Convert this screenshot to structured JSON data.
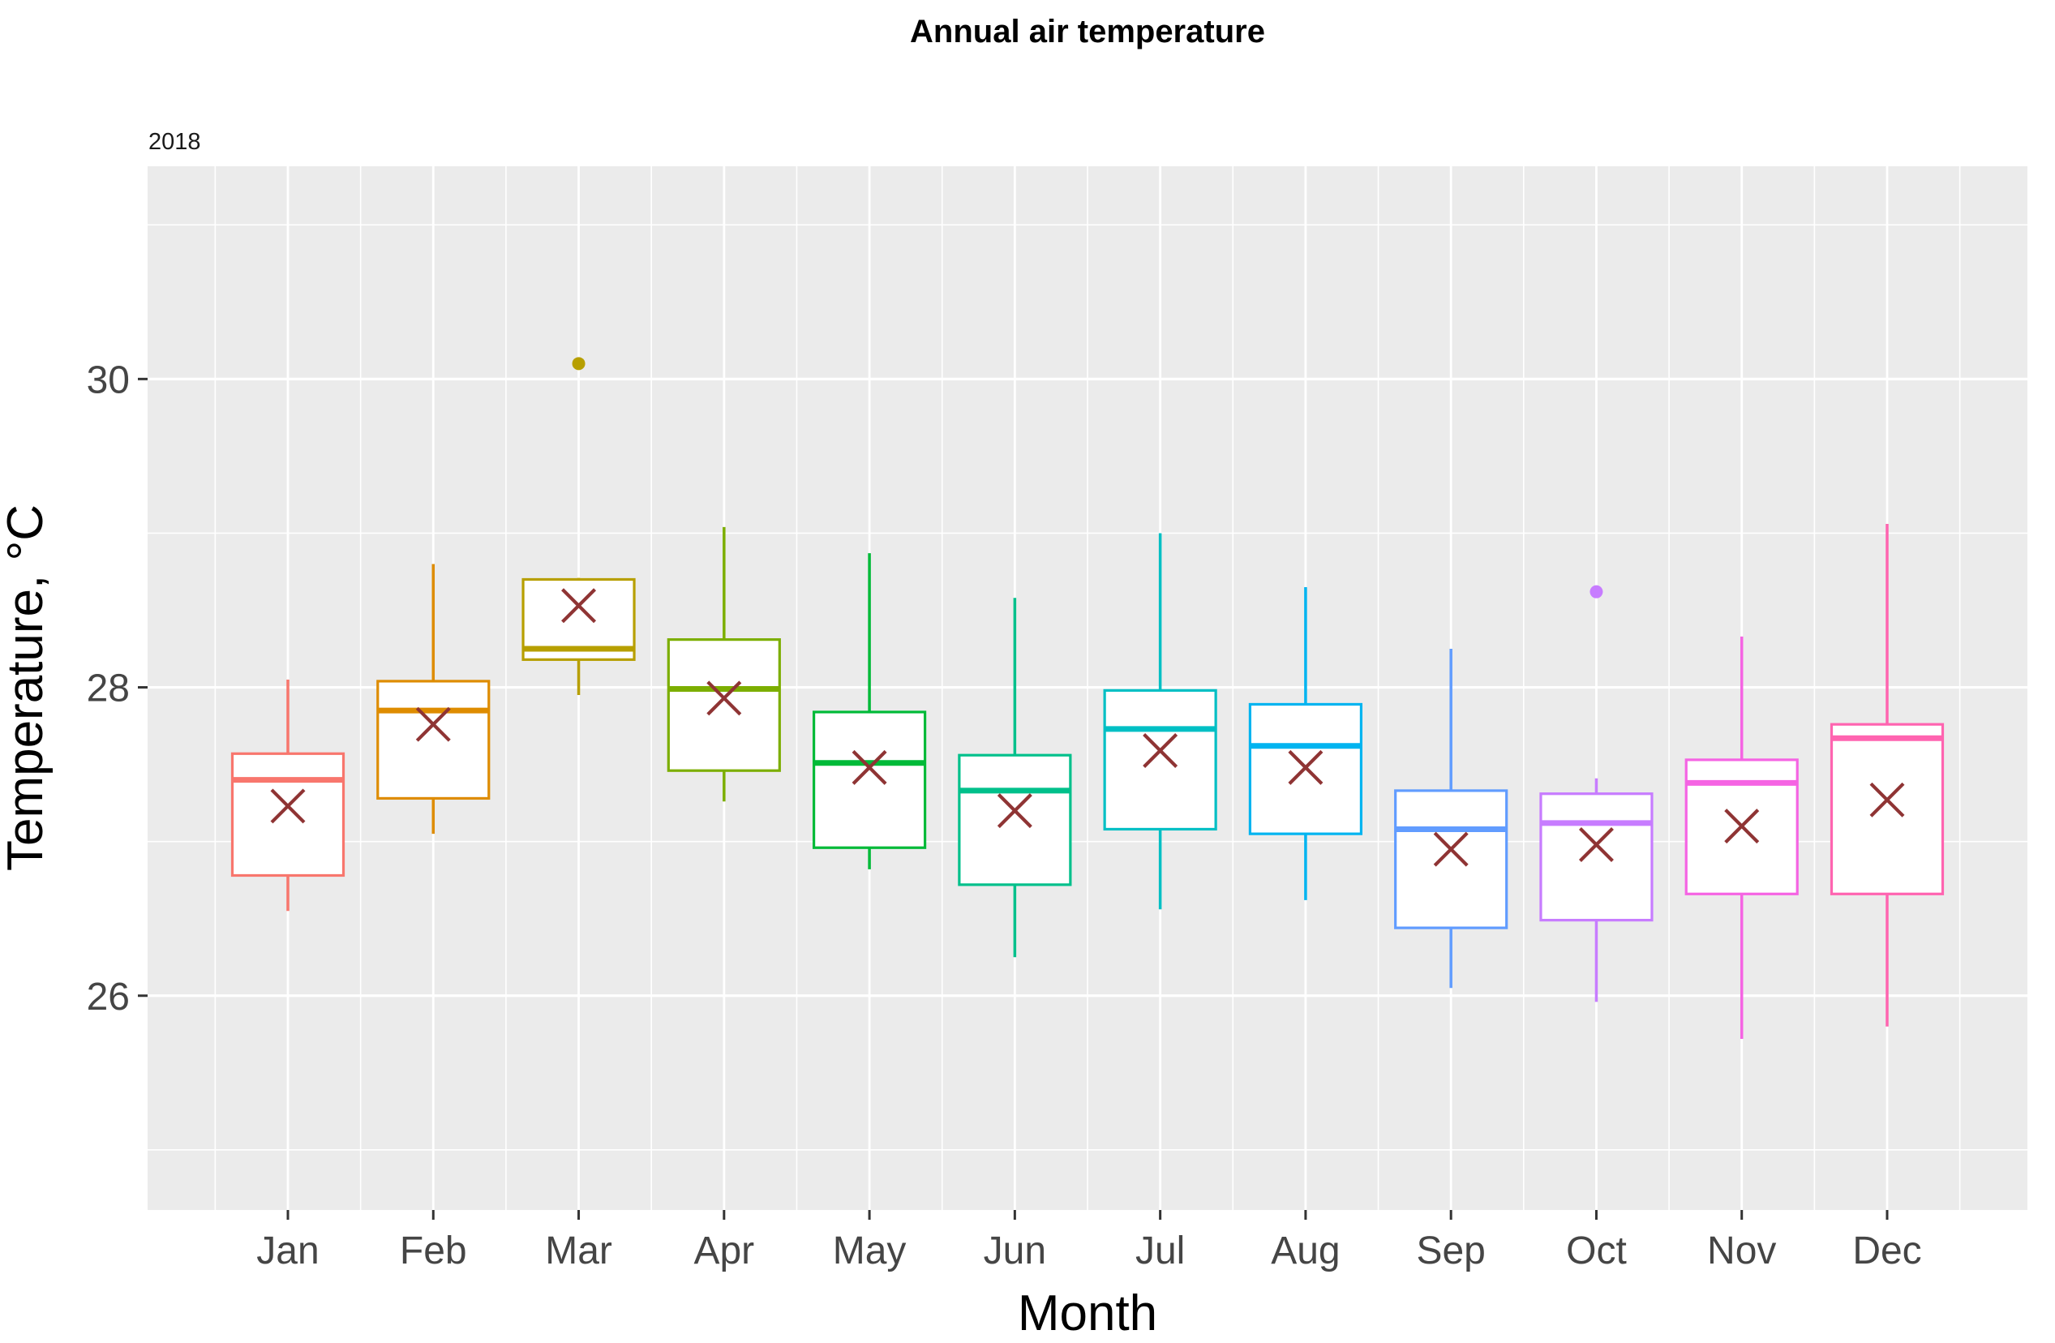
{
  "chart_data": {
    "type": "boxplot",
    "title": "Annual air temperature",
    "facet_label": "2018",
    "xlabel": "Month",
    "ylabel": "Temperature, °C",
    "categories": [
      "Jan",
      "Feb",
      "Mar",
      "Apr",
      "May",
      "Jun",
      "Jul",
      "Aug",
      "Sep",
      "Oct",
      "Nov",
      "Dec"
    ],
    "y_axis": {
      "major_ticks": [
        26,
        28,
        30
      ],
      "minor_ticks": [
        25,
        27,
        29,
        31
      ],
      "ylim": [
        24.61,
        31.38
      ],
      "grid": "on",
      "legend": "none"
    },
    "series": [
      {
        "month": "Jan",
        "color": "#F8766D",
        "min": 26.55,
        "q1": 26.78,
        "median": 27.4,
        "q3": 27.57,
        "max": 28.05,
        "mean": 27.23,
        "outliers": []
      },
      {
        "month": "Feb",
        "color": "#DE8C00",
        "min": 27.05,
        "q1": 27.28,
        "median": 27.85,
        "q3": 28.04,
        "max": 28.8,
        "mean": 27.76,
        "outliers": []
      },
      {
        "month": "Mar",
        "color": "#B79F00",
        "min": 27.95,
        "q1": 28.18,
        "median": 28.25,
        "q3": 28.7,
        "max": 28.71,
        "mean": 28.53,
        "outliers": [
          30.1
        ]
      },
      {
        "month": "Apr",
        "color": "#7CAE00",
        "min": 27.26,
        "q1": 27.46,
        "median": 27.99,
        "q3": 28.31,
        "max": 29.04,
        "mean": 27.93,
        "outliers": []
      },
      {
        "month": "May",
        "color": "#00BA38",
        "min": 26.82,
        "q1": 26.96,
        "median": 27.51,
        "q3": 27.84,
        "max": 28.87,
        "mean": 27.48,
        "outliers": []
      },
      {
        "month": "Jun",
        "color": "#00C08B",
        "min": 26.25,
        "q1": 26.72,
        "median": 27.33,
        "q3": 27.56,
        "max": 28.58,
        "mean": 27.2,
        "outliers": []
      },
      {
        "month": "Jul",
        "color": "#00BFC4",
        "min": 26.56,
        "q1": 27.08,
        "median": 27.73,
        "q3": 27.98,
        "max": 29.0,
        "mean": 27.59,
        "outliers": []
      },
      {
        "month": "Aug",
        "color": "#00B4F0",
        "min": 26.62,
        "q1": 27.05,
        "median": 27.62,
        "q3": 27.89,
        "max": 28.65,
        "mean": 27.48,
        "outliers": []
      },
      {
        "month": "Sep",
        "color": "#619CFF",
        "min": 26.05,
        "q1": 26.44,
        "median": 27.08,
        "q3": 27.33,
        "max": 28.25,
        "mean": 26.95,
        "outliers": []
      },
      {
        "month": "Oct",
        "color": "#C77CFF",
        "min": 25.96,
        "q1": 26.49,
        "median": 27.12,
        "q3": 27.31,
        "max": 27.41,
        "mean": 26.98,
        "outliers": [
          28.62
        ]
      },
      {
        "month": "Nov",
        "color": "#F564E3",
        "min": 25.72,
        "q1": 26.66,
        "median": 27.38,
        "q3": 27.53,
        "max": 28.33,
        "mean": 27.1,
        "outliers": []
      },
      {
        "month": "Dec",
        "color": "#FF64B0",
        "min": 25.8,
        "q1": 26.66,
        "median": 27.67,
        "q3": 27.76,
        "max": 29.06,
        "mean": 27.27,
        "outliers": []
      }
    ]
  },
  "style": {
    "panel_bg": "#EBEBEB",
    "grid_color": "#FFFFFF",
    "tick_mark_color": "#333333",
    "tick_label_color": "#454545",
    "mean_marker_color": "#8F3434",
    "box_fill": "#FFFFFF"
  }
}
